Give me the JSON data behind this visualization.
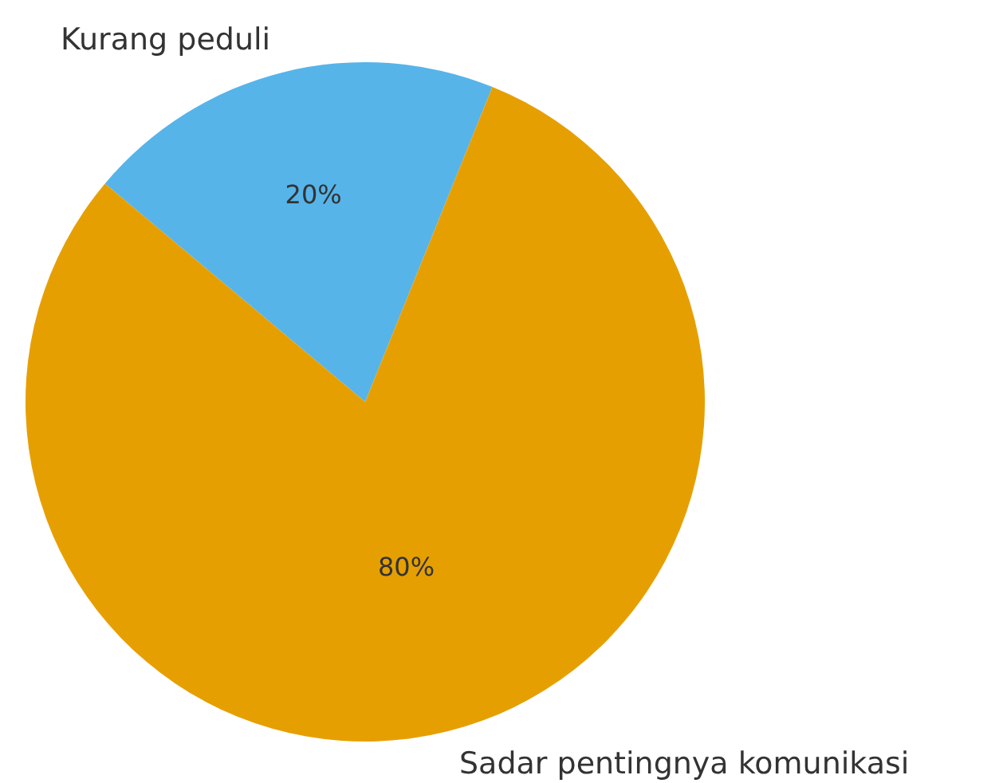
{
  "chart_data": {
    "type": "pie",
    "categories": [
      "Kurang peduli",
      "Sadar pentingnya komunikasi"
    ],
    "values": [
      20,
      80
    ],
    "colors": [
      "#56b4e9",
      "#e69f00"
    ],
    "value_labels": [
      "20%",
      "80%"
    ],
    "legend": false
  }
}
